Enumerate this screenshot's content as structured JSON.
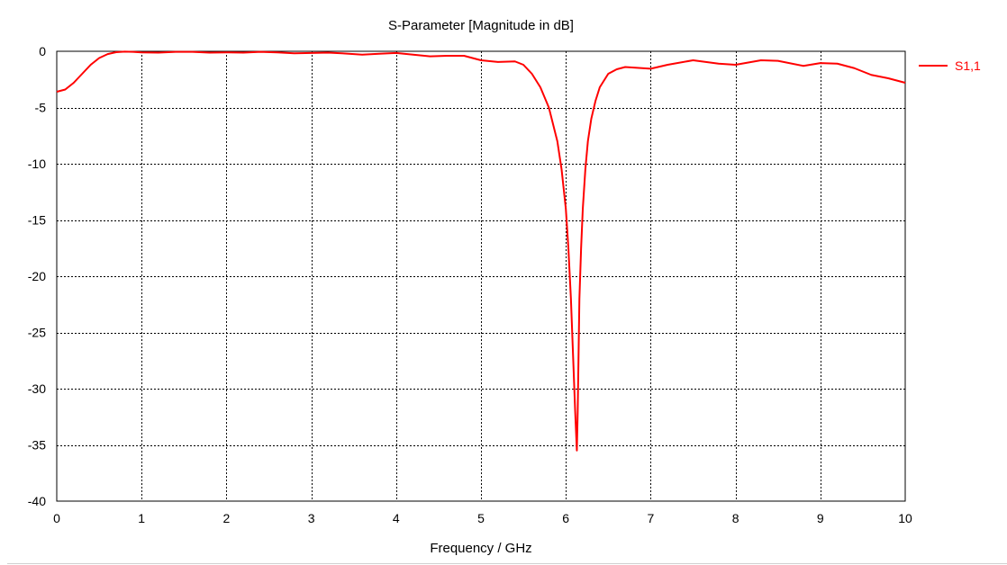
{
  "chart_data": {
    "type": "line",
    "title": "S-Parameter [Magnitude in dB]",
    "xlabel": "Frequency / GHz",
    "ylabel": "",
    "xlim": [
      0,
      10
    ],
    "ylim": [
      -40,
      0
    ],
    "xticks": [
      "0",
      "1",
      "2",
      "3",
      "4",
      "5",
      "6",
      "7",
      "8",
      "9",
      "10"
    ],
    "yticks": [
      "0",
      "-5",
      "-10",
      "-15",
      "-20",
      "-25",
      "-30",
      "-35",
      "-40"
    ],
    "grid": true,
    "legend_position": "right",
    "series": [
      {
        "name": "S1,1",
        "color": "#ff0000",
        "x": [
          0,
          0.1,
          0.2,
          0.3,
          0.4,
          0.5,
          0.6,
          0.7,
          0.8,
          0.9,
          1.0,
          1.2,
          1.4,
          1.6,
          1.8,
          2.0,
          2.2,
          2.4,
          2.6,
          2.8,
          3.0,
          3.2,
          3.4,
          3.6,
          3.8,
          4.0,
          4.2,
          4.4,
          4.6,
          4.8,
          5.0,
          5.2,
          5.4,
          5.5,
          5.6,
          5.7,
          5.8,
          5.9,
          5.95,
          6.0,
          6.03,
          6.06,
          6.09,
          6.11,
          6.13,
          6.14,
          6.15,
          6.16,
          6.18,
          6.2,
          6.23,
          6.26,
          6.3,
          6.35,
          6.4,
          6.5,
          6.6,
          6.7,
          6.8,
          7.0,
          7.2,
          7.5,
          7.8,
          8.0,
          8.3,
          8.5,
          8.8,
          9.0,
          9.2,
          9.4,
          9.6,
          9.8,
          10.0
        ],
        "y": [
          -3.6,
          -3.4,
          -2.8,
          -2.0,
          -1.2,
          -0.6,
          -0.25,
          -0.08,
          -0.03,
          -0.05,
          -0.1,
          -0.12,
          -0.05,
          -0.05,
          -0.12,
          -0.1,
          -0.12,
          -0.05,
          -0.1,
          -0.18,
          -0.15,
          -0.12,
          -0.2,
          -0.3,
          -0.22,
          -0.15,
          -0.3,
          -0.45,
          -0.4,
          -0.4,
          -0.8,
          -0.95,
          -0.9,
          -1.2,
          -2.0,
          -3.2,
          -5.0,
          -8.0,
          -10.5,
          -14.0,
          -17.5,
          -22.0,
          -28.0,
          -32.0,
          -35.5,
          -32.0,
          -27.0,
          -22.0,
          -17.5,
          -14.0,
          -10.5,
          -8.0,
          -6.0,
          -4.4,
          -3.2,
          -2.0,
          -1.6,
          -1.4,
          -1.45,
          -1.55,
          -1.2,
          -0.8,
          -1.1,
          -1.2,
          -0.8,
          -0.85,
          -1.3,
          -1.05,
          -1.1,
          -1.5,
          -2.1,
          -2.4,
          -2.8
        ]
      }
    ]
  }
}
